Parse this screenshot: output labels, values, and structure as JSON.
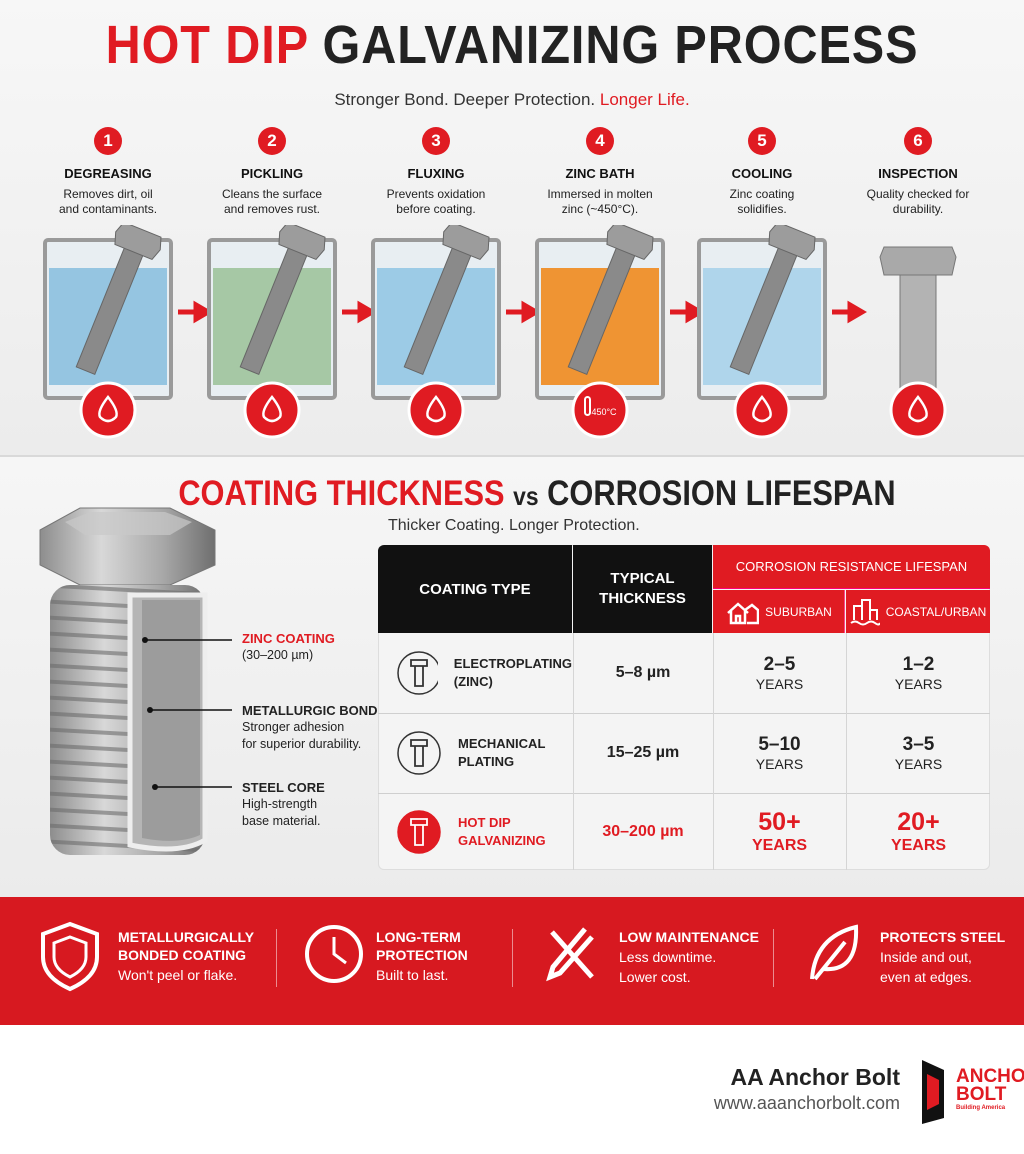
{
  "header": {
    "title_red": "HOT DIP",
    "title_black": "GALVANIZING PROCESS",
    "subtitle": "Stronger Bond. Deeper Protection.",
    "subtitle_red": "Longer Life."
  },
  "steps": [
    {
      "number": "1",
      "name": "DEGREASING",
      "description": [
        "Removes dirt, oil",
        "and contaminants."
      ]
    },
    {
      "number": "2",
      "name": "PICKLING",
      "description": [
        "Cleans the surface",
        "and removes rust."
      ]
    },
    {
      "number": "3",
      "name": "FLUXING",
      "description": [
        "Prevents oxidation",
        "before coating."
      ]
    },
    {
      "number": "4",
      "name": "ZINC BATH",
      "description": [
        "Immersed in molten",
        "zinc (~450°C)."
      ],
      "icon_text": "450°C"
    },
    {
      "number": "5",
      "name": "COOLING",
      "description": [
        "Zinc coating",
        "solidifies."
      ]
    },
    {
      "number": "6",
      "name": "INSPECTION",
      "description": [
        "Quality checked for",
        "durability."
      ]
    }
  ],
  "coating_section": {
    "title_red": "COATING THICKNESS",
    "title_vs": "vs",
    "title_black": "CORROSION LIFESPAN",
    "subtitle": "Thicker Coating. Longer Protection.",
    "callouts": [
      {
        "title": "ZINC COATING",
        "description": [
          "(30–200 µm)"
        ]
      },
      {
        "title": "METALLURGIC BOND",
        "description": [
          "Stronger adhesion",
          "for superior durability."
        ]
      },
      {
        "title": "STEEL CORE",
        "description": [
          "High-strength",
          "base material."
        ]
      }
    ]
  },
  "table": {
    "headers": {
      "coating_type": "COATING TYPE",
      "thickness": [
        "TYPICAL",
        "THICKNESS"
      ],
      "lifespan": "CORROSION RESISTANCE LIFESPAN",
      "suburban": "SUBURBAN",
      "coastal": "COASTAL/URBAN"
    },
    "rows": [
      {
        "type": [
          "ELECTROPLATING",
          "(ZINC)"
        ],
        "thickness": "5–8 µm",
        "suburban": [
          "2–5",
          "YEARS"
        ],
        "coastal": [
          "1–2",
          "YEARS"
        ]
      },
      {
        "type": [
          "MECHANICAL",
          "PLATING"
        ],
        "thickness": "15–25 µm",
        "suburban": [
          "5–10",
          "YEARS"
        ],
        "coastal": [
          "3–5",
          "YEARS"
        ]
      },
      {
        "type": [
          "HOT DIP",
          "GALVANIZING"
        ],
        "thickness": "30–200 µm",
        "suburban": [
          "50+",
          "YEARS"
        ],
        "coastal": [
          "20+",
          "YEARS"
        ]
      }
    ]
  },
  "benefits": [
    {
      "title": [
        "METALLURGICALLY",
        "BONDED COATING"
      ],
      "description": [
        "Won't peel or flake."
      ]
    },
    {
      "title": [
        "LONG-TERM",
        "PROTECTION"
      ],
      "description": [
        "Built to last."
      ]
    },
    {
      "title": [
        "LOW MAINTENANCE"
      ],
      "description": [
        "Less downtime.",
        "Lower cost."
      ]
    },
    {
      "title": [
        "PROTECTS STEEL"
      ],
      "description": [
        "Inside and out,",
        "even at edges."
      ]
    }
  ],
  "footer": {
    "brand": "AA Anchor Bolt",
    "url": "www.aaanchorbolt.com",
    "logo": [
      "ANCHOR",
      "BOLT"
    ],
    "logo_tagline": "Building America"
  }
}
